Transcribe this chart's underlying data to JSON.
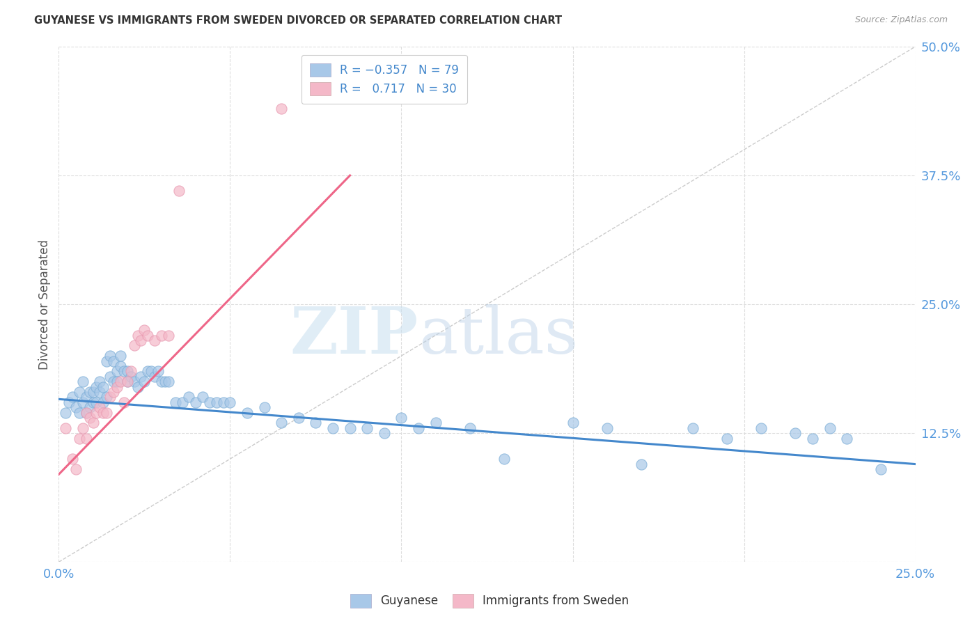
{
  "title": "GUYANESE VS IMMIGRANTS FROM SWEDEN DIVORCED OR SEPARATED CORRELATION CHART",
  "source": "Source: ZipAtlas.com",
  "ylabel": "Divorced or Separated",
  "xlim": [
    0.0,
    0.25
  ],
  "ylim": [
    0.0,
    0.5
  ],
  "legend_r1": "R = -0.357",
  "legend_n1": "N = 79",
  "legend_r2": "R =  0.717",
  "legend_n2": "N = 30",
  "color_blue": "#a8c8e8",
  "color_pink": "#f4b8c8",
  "label_guyanese": "Guyanese",
  "label_sweden": "Immigrants from Sweden",
  "watermark_zip": "ZIP",
  "watermark_atlas": "atlas",
  "blue_scatter_x": [
    0.002,
    0.003,
    0.004,
    0.005,
    0.006,
    0.006,
    0.007,
    0.007,
    0.008,
    0.008,
    0.009,
    0.009,
    0.01,
    0.01,
    0.011,
    0.011,
    0.012,
    0.012,
    0.013,
    0.013,
    0.014,
    0.014,
    0.015,
    0.015,
    0.016,
    0.016,
    0.017,
    0.017,
    0.018,
    0.018,
    0.019,
    0.02,
    0.02,
    0.021,
    0.022,
    0.023,
    0.024,
    0.025,
    0.026,
    0.027,
    0.028,
    0.029,
    0.03,
    0.031,
    0.032,
    0.034,
    0.036,
    0.038,
    0.04,
    0.042,
    0.044,
    0.046,
    0.048,
    0.05,
    0.055,
    0.06,
    0.065,
    0.07,
    0.075,
    0.08,
    0.085,
    0.09,
    0.095,
    0.1,
    0.105,
    0.11,
    0.12,
    0.13,
    0.15,
    0.16,
    0.17,
    0.185,
    0.195,
    0.205,
    0.215,
    0.22,
    0.225,
    0.23,
    0.24
  ],
  "blue_scatter_y": [
    0.145,
    0.155,
    0.16,
    0.15,
    0.145,
    0.165,
    0.155,
    0.175,
    0.16,
    0.145,
    0.165,
    0.15,
    0.155,
    0.165,
    0.17,
    0.155,
    0.165,
    0.175,
    0.155,
    0.17,
    0.195,
    0.16,
    0.18,
    0.2,
    0.175,
    0.195,
    0.185,
    0.175,
    0.19,
    0.2,
    0.185,
    0.185,
    0.175,
    0.18,
    0.175,
    0.17,
    0.18,
    0.175,
    0.185,
    0.185,
    0.18,
    0.185,
    0.175,
    0.175,
    0.175,
    0.155,
    0.155,
    0.16,
    0.155,
    0.16,
    0.155,
    0.155,
    0.155,
    0.155,
    0.145,
    0.15,
    0.135,
    0.14,
    0.135,
    0.13,
    0.13,
    0.13,
    0.125,
    0.14,
    0.13,
    0.135,
    0.13,
    0.1,
    0.135,
    0.13,
    0.095,
    0.13,
    0.12,
    0.13,
    0.125,
    0.12,
    0.13,
    0.12,
    0.09
  ],
  "pink_scatter_x": [
    0.002,
    0.004,
    0.005,
    0.006,
    0.007,
    0.008,
    0.008,
    0.009,
    0.01,
    0.011,
    0.012,
    0.013,
    0.014,
    0.015,
    0.016,
    0.017,
    0.018,
    0.019,
    0.02,
    0.021,
    0.022,
    0.023,
    0.024,
    0.025,
    0.026,
    0.028,
    0.03,
    0.032,
    0.035,
    0.065
  ],
  "pink_scatter_y": [
    0.13,
    0.1,
    0.09,
    0.12,
    0.13,
    0.12,
    0.145,
    0.14,
    0.135,
    0.145,
    0.15,
    0.145,
    0.145,
    0.16,
    0.165,
    0.17,
    0.175,
    0.155,
    0.175,
    0.185,
    0.21,
    0.22,
    0.215,
    0.225,
    0.22,
    0.215,
    0.22,
    0.22,
    0.36,
    0.44
  ],
  "blue_line_x": [
    0.0,
    0.25
  ],
  "blue_line_y": [
    0.158,
    0.095
  ],
  "pink_line_x": [
    0.0,
    0.085
  ],
  "pink_line_y": [
    0.085,
    0.375
  ],
  "diag_line_x": [
    0.0,
    0.25
  ],
  "diag_line_y": [
    0.0,
    0.5
  ]
}
